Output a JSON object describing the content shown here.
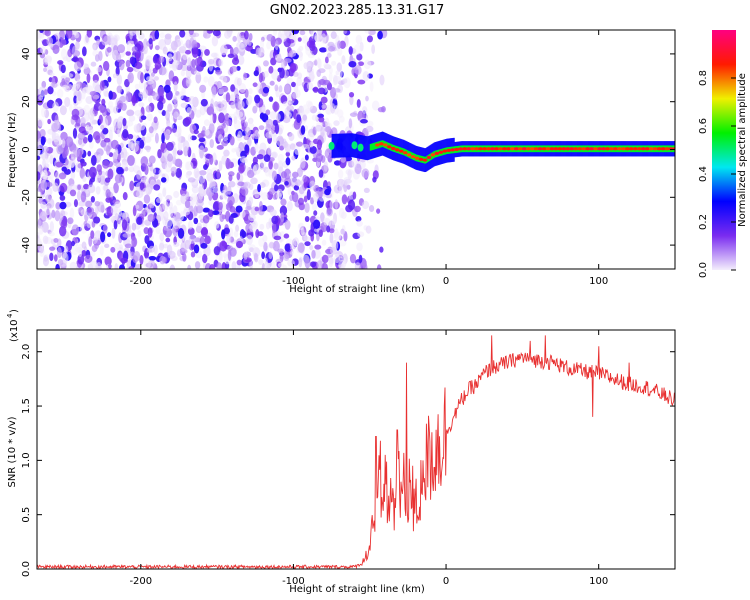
{
  "title": "GN02.2023.285.13.31.G17",
  "chart_data": [
    {
      "type": "heatmap",
      "xlabel": "Height of straight line (km)",
      "ylabel": "Frequency (Hz)",
      "xlim": [
        -268,
        150
      ],
      "ylim": [
        -50,
        50
      ],
      "x_ticks": [
        -200,
        -100,
        0,
        100
      ],
      "y_ticks": [
        -40,
        -20,
        0,
        20,
        40
      ],
      "x_tick_labels": [
        "-200",
        "-100",
        "0",
        "100"
      ],
      "y_tick_labels": [
        "-40",
        "-20",
        "0",
        "20",
        "40"
      ],
      "grid": false,
      "colorbar": {
        "label": "Normalized spectral amplitude",
        "range": [
          0,
          1
        ],
        "ticks": [
          0.0,
          0.2,
          0.4,
          0.6,
          0.8
        ],
        "tick_labels": [
          "0.0",
          "0.2",
          "0.4",
          "0.6",
          "0.8"
        ],
        "colors": [
          "#f4eefc",
          "#7a2cf0",
          "#0000ff",
          "#00e8f0",
          "#00f000",
          "#f0f000",
          "#ff1a00",
          "#ff0080"
        ]
      },
      "features": {
        "noise_region_x": [
          -268,
          -40
        ],
        "noise_dense_until_x": -75,
        "carrier_track": [
          [
            -75,
            1.5
          ],
          [
            -62,
            1.8
          ],
          [
            -52,
            0.5
          ],
          [
            -42,
            2.5
          ],
          [
            -35,
            0.5
          ],
          [
            -28,
            -1
          ],
          [
            -20,
            -3.5
          ],
          [
            -14,
            -4.5
          ],
          [
            -8,
            -2
          ],
          [
            0,
            -0.5
          ],
          [
            10,
            0.3
          ],
          [
            50,
            0.3
          ],
          [
            100,
            0.3
          ],
          [
            150,
            0.3
          ]
        ],
        "carrier_peak_amplitude": 0.9,
        "carrier_start_x": 5
      }
    },
    {
      "type": "line",
      "xlabel": "Height of straight line (km)",
      "ylabel": "SNR (10 * v/v)",
      "y_multiplier": "(x10^4)",
      "xlim": [
        -268,
        150
      ],
      "ylim": [
        0.0,
        2.2
      ],
      "x_ticks": [
        -200,
        -100,
        0,
        100
      ],
      "y_ticks": [
        0.0,
        0.5,
        1.0,
        1.5,
        2.0
      ],
      "x_tick_labels": [
        "-200",
        "-100",
        "0",
        "100"
      ],
      "y_tick_labels": [
        "0.0",
        "0.5",
        "1.0",
        "1.5",
        "2.0"
      ],
      "grid": false,
      "series": [
        {
          "color": "#e83030",
          "x": [
            -268,
            -200,
            -100,
            -60,
            -55,
            -50,
            -48,
            -46,
            -44,
            -42,
            -40,
            -38,
            -36,
            -34,
            -32,
            -30,
            -28,
            -26,
            -24,
            -22,
            -20,
            -18,
            -15,
            -10,
            -5,
            0,
            5,
            10,
            15,
            20,
            25,
            30,
            40,
            50,
            60,
            70,
            80,
            90,
            100,
            110,
            120,
            130,
            140,
            150
          ],
          "values": [
            0.02,
            0.02,
            0.02,
            0.02,
            0.05,
            0.2,
            0.5,
            0.35,
            0.75,
            0.45,
            0.85,
            0.55,
            0.7,
            0.5,
            0.95,
            0.6,
            0.8,
            0.5,
            0.9,
            0.45,
            0.6,
            0.55,
            0.9,
            1.05,
            1.15,
            1.25,
            1.4,
            1.55,
            1.65,
            1.7,
            1.8,
            1.85,
            1.9,
            1.95,
            1.92,
            1.9,
            1.85,
            1.82,
            1.8,
            1.75,
            1.7,
            1.68,
            1.62,
            1.55
          ],
          "noise_amplitude": 0.06,
          "spikes": [
            [
              -46,
              1.22
            ],
            [
              -43,
              1.18
            ],
            [
              -40,
              1.05
            ],
            [
              -32,
              1.28
            ],
            [
              -26,
              1.9
            ],
            [
              -22,
              0.95
            ],
            [
              -15,
              1.0
            ],
            [
              30,
              2.15
            ],
            [
              55,
              2.1
            ],
            [
              65,
              2.15
            ],
            [
              100,
              2.05
            ],
            [
              96,
              1.4
            ],
            [
              120,
              1.9
            ]
          ]
        }
      ]
    }
  ]
}
